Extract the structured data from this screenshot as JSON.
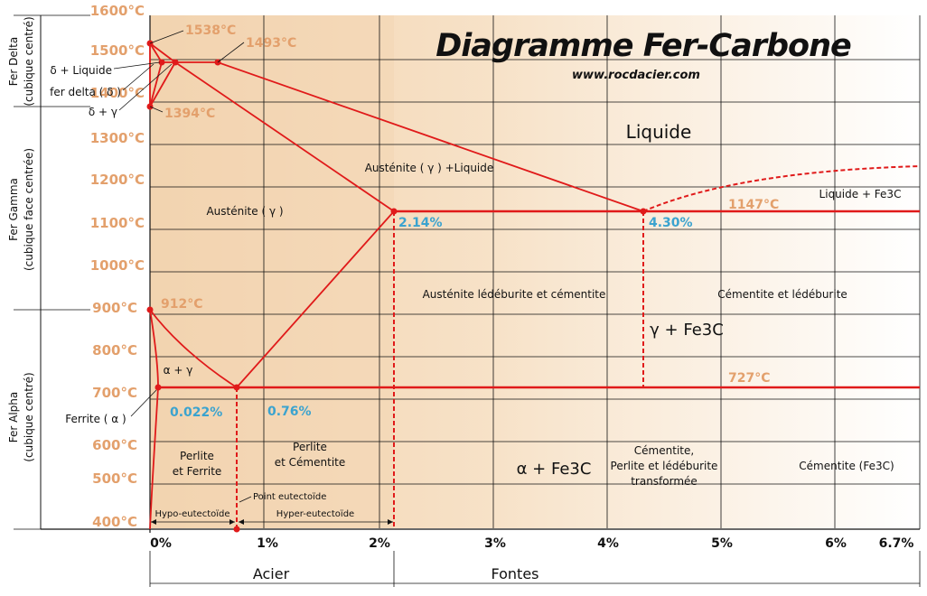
{
  "title": "Diagramme Fer-Carbone",
  "website": "www.rocdacier.com",
  "colors": {
    "phase_lines": "#e01a1a",
    "temperature_labels": "#e3a06c",
    "composition_labels": "#3ba3cf",
    "background_steel": "#f2d2ad"
  },
  "y_axis": {
    "unit": "°C",
    "range": [
      400,
      1600
    ],
    "ticks": [
      "1600°C",
      "1500°C",
      "1400°C",
      "1300°C",
      "1200°C",
      "1100°C",
      "1000°C",
      "900°C",
      "800°C",
      "700°C",
      "600°C",
      "500°C",
      "400°C"
    ]
  },
  "x_axis": {
    "unit": "% C",
    "range": [
      0,
      6.7
    ],
    "ticks": [
      "0%",
      "1%",
      "2%",
      "3%",
      "4%",
      "5%",
      "6%",
      "6.7%"
    ]
  },
  "side_phases": [
    {
      "name": "Fer Delta",
      "structure": "(cubique centré)"
    },
    {
      "name": "Fer Gamma",
      "structure": "(cubique face centrée)"
    },
    {
      "name": "Fer Alpha",
      "structure": "(cubique centré)"
    }
  ],
  "bottom_categories": {
    "steel": "Acier",
    "cast_iron": "Fontes"
  },
  "temperature_points": {
    "t1538": "1538°C",
    "t1493": "1493°C",
    "t1394": "1394°C",
    "t912": "912°C",
    "t1147": "1147°C",
    "t727": "727°C"
  },
  "composition_points": {
    "c214": "2.14%",
    "c430": "4.30%",
    "c0022": "0.022%",
    "c076": "0.76%"
  },
  "regions": {
    "delta_liquid": "δ + Liquide",
    "delta_iron": "fer delta ( δ )",
    "delta_gamma": "δ + γ",
    "liquid": "Liquide",
    "austenite_liquid": "Austénite ( γ ) +Liquide",
    "liquid_fe3c": "Liquide + Fe3C",
    "austenite": "Austénite ( γ )",
    "austenite_ledeburite": "Austénite lédéburite et cémentite",
    "cementite_ledeburite": "Cémentite et lédéburite",
    "gamma_fe3c": "γ + Fe3C",
    "alpha_gamma": "α + γ",
    "ferrite": "Ferrite ( α )",
    "perlite_ferrite_1": "Perlite",
    "perlite_ferrite_2": "et Ferrite",
    "perlite_cementite_1": "Perlite",
    "perlite_cementite_2": "et Cémentite",
    "alpha_fe3c": "α + Fe3C",
    "transformed_1": "Cémentite,",
    "transformed_2": "Perlite et lédéburite",
    "transformed_3": "transformée",
    "cementite": "Cémentite (Fe3C)",
    "hypo": "Hypo-eutectoïde",
    "hyper": "Hyper-eutectoïde",
    "eutectoid_point": "Point eutectoïde"
  },
  "chart_data": {
    "type": "phase-diagram",
    "title": "Diagramme Fer-Carbone",
    "xlabel": "",
    "ylabel": "",
    "xlim": [
      0,
      6.7
    ],
    "ylim": [
      400,
      1600
    ],
    "lines": {
      "liquidus": [
        [
          0,
          1538
        ],
        [
          0.53,
          1493
        ],
        [
          4.3,
          1147
        ]
      ],
      "liquidus_cementite": [
        [
          4.3,
          1147
        ],
        [
          6.7,
          1250
        ]
      ],
      "eutectic_isotherm": [
        [
          2.14,
          1147
        ],
        [
          6.7,
          1147
        ]
      ],
      "eutectoid_isotherm": [
        [
          0.022,
          727
        ],
        [
          6.7,
          727
        ]
      ],
      "acm_line": [
        [
          2.14,
          1147
        ],
        [
          0.76,
          727
        ]
      ],
      "a3_line": [
        [
          0,
          912
        ],
        [
          0.76,
          727
        ]
      ],
      "solidus": [
        [
          0.17,
          1493
        ],
        [
          2.14,
          1147
        ]
      ],
      "peritectic_isotherm": [
        [
          0.09,
          1493
        ],
        [
          0.53,
          1493
        ]
      ]
    },
    "points": [
      {
        "label": "1538°C",
        "x": 0,
        "y": 1538
      },
      {
        "label": "1493°C",
        "x": 0.53,
        "y": 1493
      },
      {
        "label": "1394°C",
        "x": 0,
        "y": 1394
      },
      {
        "label": "912°C",
        "x": 0,
        "y": 912
      },
      {
        "label": "2.14%",
        "x": 2.14,
        "y": 1147
      },
      {
        "label": "4.30%",
        "x": 4.3,
        "y": 1147
      },
      {
        "label": "0.76%",
        "x": 0.76,
        "y": 727
      },
      {
        "label": "0.022%",
        "x": 0.022,
        "y": 727
      }
    ]
  }
}
